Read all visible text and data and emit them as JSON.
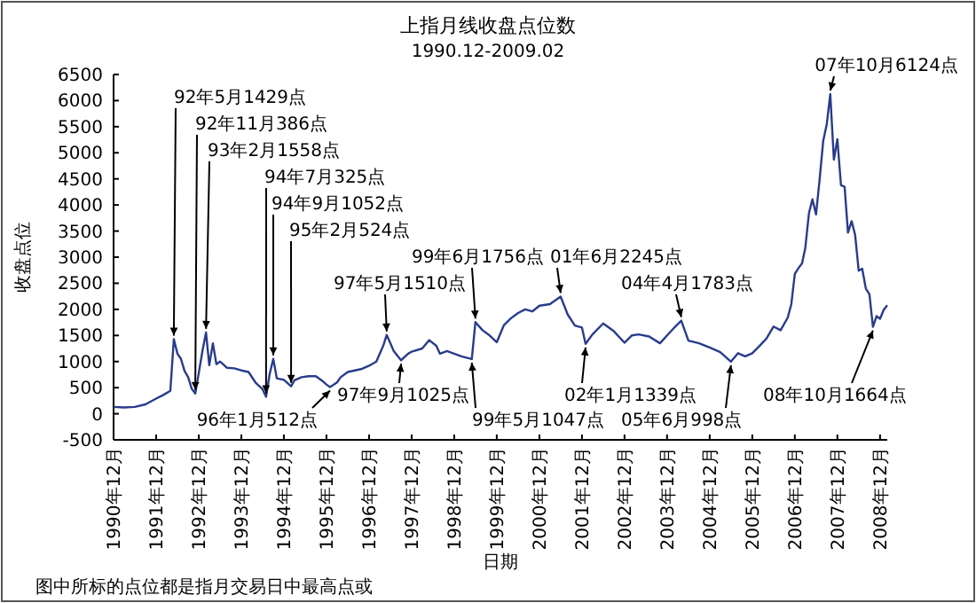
{
  "chart_data": {
    "type": "line",
    "title": "上指月线收盘点位数",
    "subtitle": "1990.12-2009.02",
    "xlabel": "日期",
    "ylabel": "收盘点位",
    "xlim": [
      "1990-12",
      "2009-02"
    ],
    "ylim": [
      -500,
      6500
    ],
    "yticks": [
      -500,
      0,
      500,
      1000,
      1500,
      2000,
      2500,
      3000,
      3500,
      4000,
      4500,
      5000,
      5500,
      6000,
      6500
    ],
    "xticks": [
      {
        "value": "1990-12",
        "label": "1990年12月"
      },
      {
        "value": "1991-12",
        "label": "1991年12月"
      },
      {
        "value": "1992-12",
        "label": "1992年12月"
      },
      {
        "value": "1993-12",
        "label": "1993年12月"
      },
      {
        "value": "1994-12",
        "label": "1994年12月"
      },
      {
        "value": "1995-12",
        "label": "1995年12月"
      },
      {
        "value": "1996-12",
        "label": "1996年12月"
      },
      {
        "value": "1997-12",
        "label": "1997年12月"
      },
      {
        "value": "1998-12",
        "label": "1998年12月"
      },
      {
        "value": "1999-12",
        "label": "1999年12月"
      },
      {
        "value": "2000-12",
        "label": "2000年12月"
      },
      {
        "value": "2001-12",
        "label": "2001年12月"
      },
      {
        "value": "2002-12",
        "label": "2002年12月"
      },
      {
        "value": "2003-12",
        "label": "2003年12月"
      },
      {
        "value": "2004-12",
        "label": "2004年12月"
      },
      {
        "value": "2005-12",
        "label": "2005年12月"
      },
      {
        "value": "2006-12",
        "label": "2006年12月"
      },
      {
        "value": "2007-12",
        "label": "2007年12月"
      },
      {
        "value": "2008-12",
        "label": "2008年12月"
      }
    ],
    "grid": false,
    "marker": "none",
    "line_style": "solid",
    "x": [
      "1990-12",
      "1991-03",
      "1991-06",
      "1991-09",
      "1991-12",
      "1992-02",
      "1992-04",
      "1992-05",
      "1992-06",
      "1992-07",
      "1992-08",
      "1992-09",
      "1992-10",
      "1992-11",
      "1992-12",
      "1993-01",
      "1993-02",
      "1993-03",
      "1993-04",
      "1993-05",
      "1993-06",
      "1993-08",
      "1993-10",
      "1993-12",
      "1994-02",
      "1994-04",
      "1994-06",
      "1994-07",
      "1994-08",
      "1994-09",
      "1994-10",
      "1994-12",
      "1995-02",
      "1995-03",
      "1995-05",
      "1995-07",
      "1995-09",
      "1995-11",
      "1995-12",
      "1996-01",
      "1996-03",
      "1996-04",
      "1996-06",
      "1996-08",
      "1996-10",
      "1996-12",
      "1997-02",
      "1997-04",
      "1997-05",
      "1997-07",
      "1997-09",
      "1997-11",
      "1997-12",
      "1998-03",
      "1998-05",
      "1998-07",
      "1998-08",
      "1998-10",
      "1998-12",
      "1999-02",
      "1999-05",
      "1999-06",
      "1999-08",
      "1999-10",
      "1999-12",
      "2000-02",
      "2000-04",
      "2000-06",
      "2000-08",
      "2000-10",
      "2000-12",
      "2001-03",
      "2001-06",
      "2001-08",
      "2001-10",
      "2001-12",
      "2002-01",
      "2002-03",
      "2002-06",
      "2002-09",
      "2002-12",
      "2003-02",
      "2003-04",
      "2003-07",
      "2003-10",
      "2003-12",
      "2004-02",
      "2004-04",
      "2004-06",
      "2004-09",
      "2004-12",
      "2005-03",
      "2005-06",
      "2005-08",
      "2005-10",
      "2005-12",
      "2006-02",
      "2006-04",
      "2006-06",
      "2006-08",
      "2006-10",
      "2006-11",
      "2006-12",
      "2007-01",
      "2007-02",
      "2007-03",
      "2007-04",
      "2007-05",
      "2007-06",
      "2007-07",
      "2007-08",
      "2007-09",
      "2007-10",
      "2007-11",
      "2007-12",
      "2008-01",
      "2008-02",
      "2008-03",
      "2008-04",
      "2008-05",
      "2008-06",
      "2008-07",
      "2008-08",
      "2008-09",
      "2008-10",
      "2008-11",
      "2008-12",
      "2009-01",
      "2009-02"
    ],
    "series": [
      {
        "color": "#283c8c",
        "values": [
          130,
          120,
          130,
          180,
          290,
          360,
          440,
          1429,
          1150,
          1050,
          820,
          700,
          480,
          386,
          780,
          1200,
          1558,
          930,
          1350,
          950,
          1000,
          880,
          870,
          830,
          800,
          600,
          470,
          325,
          760,
          1052,
          680,
          650,
          524,
          640,
          700,
          720,
          720,
          620,
          560,
          512,
          600,
          700,
          800,
          830,
          860,
          920,
          1000,
          1300,
          1510,
          1200,
          1025,
          1150,
          1190,
          1250,
          1410,
          1300,
          1150,
          1200,
          1150,
          1100,
          1047,
          1756,
          1600,
          1500,
          1370,
          1700,
          1830,
          1930,
          2000,
          1960,
          2070,
          2100,
          2245,
          1900,
          1690,
          1650,
          1339,
          1520,
          1730,
          1580,
          1360,
          1500,
          1520,
          1480,
          1350,
          1500,
          1650,
          1783,
          1400,
          1350,
          1270,
          1180,
          998,
          1160,
          1100,
          1160,
          1300,
          1440,
          1670,
          1600,
          1840,
          2100,
          2680,
          2790,
          2880,
          3180,
          3840,
          4110,
          3820,
          4470,
          5220,
          5550,
          6124,
          4870,
          5260,
          4380,
          4350,
          3470,
          3690,
          3430,
          2740,
          2780,
          2400,
          2290,
          1664,
          1870,
          1820,
          1990,
          2080
        ]
      }
    ],
    "annotations": [
      {
        "text": "92年5月1429点",
        "x": "1992-05",
        "y": 1429
      },
      {
        "text": "92年11月386点",
        "x": "1992-11",
        "y": 386
      },
      {
        "text": "93年2月1558点",
        "x": "1993-02",
        "y": 1558
      },
      {
        "text": "94年7月325点",
        "x": "1994-07",
        "y": 325
      },
      {
        "text": "94年9月1052点",
        "x": "1994-09",
        "y": 1052
      },
      {
        "text": "95年2月524点",
        "x": "1995-02",
        "y": 524
      },
      {
        "text": "96年1月512点",
        "x": "1996-01",
        "y": 512
      },
      {
        "text": "97年5月1510点",
        "x": "1997-05",
        "y": 1510
      },
      {
        "text": "97年9月1025点",
        "x": "1997-09",
        "y": 1025
      },
      {
        "text": "99年5月1047点",
        "x": "1999-05",
        "y": 1047
      },
      {
        "text": "99年6月1756点",
        "x": "1999-06",
        "y": 1756
      },
      {
        "text": "01年6月2245点",
        "x": "2001-06",
        "y": 2245
      },
      {
        "text": "02年1月1339点",
        "x": "2002-01",
        "y": 1339
      },
      {
        "text": "04年4月1783点",
        "x": "2004-04",
        "y": 1783
      },
      {
        "text": "05年6月998点",
        "x": "2005-06",
        "y": 998
      },
      {
        "text": "07年10月6124点",
        "x": "2007-10",
        "y": 6124
      },
      {
        "text": "08年10月1664点",
        "x": "2008-10",
        "y": 1664
      },
      "图中所标的点位都是指月交易日中最高点或"
    ]
  }
}
